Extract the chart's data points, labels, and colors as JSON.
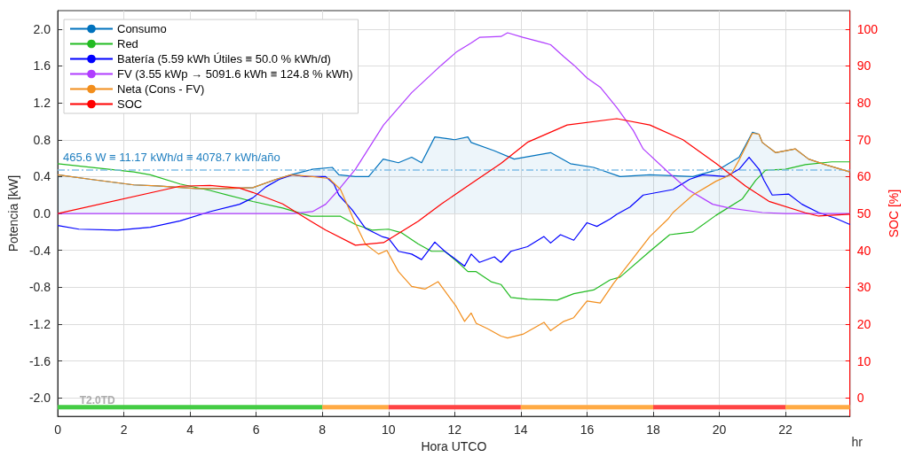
{
  "chart_data": {
    "type": "line",
    "xlabel": "Hora UTCO",
    "ylabel": "Potencia [kW]",
    "y2label": "SOC [%]",
    "xlim": [
      0,
      23.95
    ],
    "xticks": [
      0,
      2,
      4,
      6,
      8,
      10,
      12,
      14,
      16,
      18,
      20,
      22
    ],
    "ylim": [
      -2.2,
      2.2
    ],
    "yticks": [
      {
        "value": -2,
        "label": "-2.0"
      },
      {
        "value": -1.6,
        "label": "-1.6"
      },
      {
        "value": -1.2,
        "label": "-1.2"
      },
      {
        "value": -0.8,
        "label": "-0.8"
      },
      {
        "value": -0.4,
        "label": "-0.4"
      },
      {
        "value": 0,
        "label": "0.0"
      },
      {
        "value": 0.4,
        "label": "0.4"
      },
      {
        "value": 0.8,
        "label": "0.8"
      },
      {
        "value": 1.2,
        "label": "1.2"
      },
      {
        "value": 1.6,
        "label": "1.6"
      },
      {
        "value": 2,
        "label": "2.0"
      }
    ],
    "y2lim": [
      -5,
      105
    ],
    "y2ticks": [
      0,
      10,
      20,
      30,
      40,
      50,
      60,
      70,
      80,
      90,
      100
    ],
    "grid": true,
    "legend": "top left",
    "ref_lines": [
      {
        "axis": "y",
        "value": 0.4656,
        "label": "465.6 W ≡ 11.17 kWh/d ≡ 4078.7 kWh/año",
        "color": "#7fbde6",
        "line_style": "dashed"
      }
    ],
    "annotations": [
      {
        "text": "T2.0TD",
        "x": 1.2,
        "y": -2.03
      },
      "hr"
    ],
    "series": [
      {
        "name": "Consumo",
        "type": "area",
        "color": "#0072bd",
        "x": [
          0,
          1,
          2.3,
          3,
          4.2,
          5,
          5.9,
          6.6,
          7.05,
          7.7,
          8.3,
          8.5,
          9.0,
          9.4,
          9.84,
          10.3,
          10.7,
          11.0,
          11.4,
          12.0,
          12.4,
          12.5,
          13.2,
          13.8,
          14.9,
          15.5,
          16.2,
          17.0,
          17.9,
          19.2,
          20.0,
          20.6,
          21.0,
          21.2,
          21.3,
          21.7,
          22.3,
          22.7,
          23.2,
          23.95
        ],
        "values": [
          0.42,
          0.37,
          0.31,
          0.3,
          0.27,
          0.27,
          0.28,
          0.37,
          0.42,
          0.48,
          0.5,
          0.42,
          0.4,
          0.4,
          0.59,
          0.55,
          0.61,
          0.55,
          0.83,
          0.8,
          0.83,
          0.77,
          0.68,
          0.59,
          0.66,
          0.54,
          0.5,
          0.4,
          0.42,
          0.4,
          0.48,
          0.61,
          0.88,
          0.86,
          0.77,
          0.66,
          0.7,
          0.59,
          0.53,
          0.45
        ]
      },
      {
        "name": "Red",
        "color": "#22bb22",
        "x": [
          0,
          2.3,
          2.8,
          3.7,
          4.6,
          5.9,
          6.8,
          7.65,
          8.55,
          9.0,
          9.5,
          10.0,
          10.4,
          10.9,
          11.3,
          11.7,
          12.1,
          12.4,
          12.65,
          13.1,
          13.4,
          13.7,
          14.2,
          15.1,
          15.6,
          16.2,
          16.7,
          17.0,
          17.9,
          18.5,
          19.2,
          19.9,
          20.7,
          21.1,
          21.4,
          22.0,
          22.6,
          23.4,
          23.95
        ],
        "values": [
          0.54,
          0.45,
          0.42,
          0.32,
          0.25,
          0.13,
          0.06,
          -0.03,
          -0.03,
          -0.12,
          -0.18,
          -0.17,
          -0.21,
          -0.33,
          -0.41,
          -0.41,
          -0.53,
          -0.63,
          -0.63,
          -0.74,
          -0.77,
          -0.91,
          -0.93,
          -0.94,
          -0.87,
          -0.83,
          -0.72,
          -0.69,
          -0.41,
          -0.23,
          -0.2,
          -0.02,
          0.16,
          0.36,
          0.47,
          0.48,
          0.53,
          0.56,
          0.56
        ]
      },
      {
        "name": "Batería (5.59 kWh Útiles ≡ 50.0 % kWh/d)",
        "color": "#0000ff",
        "x": [
          0,
          0.64,
          1.8,
          2.8,
          3.7,
          4.6,
          5.5,
          5.9,
          6.3,
          6.7,
          7.1,
          7.5,
          8.1,
          8.35,
          8.5,
          8.9,
          9.3,
          9.8,
          10.0,
          10.3,
          10.7,
          11.0,
          11.4,
          11.7,
          12.0,
          12.3,
          12.5,
          12.75,
          13.2,
          13.4,
          13.7,
          14.2,
          14.7,
          14.9,
          15.2,
          15.6,
          16.0,
          16.3,
          16.7,
          16.9,
          17.3,
          17.7,
          18.6,
          19.1,
          19.5,
          20.2,
          20.6,
          20.9,
          21.2,
          21.35,
          21.6,
          22.1,
          22.5,
          23.0,
          23.5,
          23.95
        ],
        "values": [
          -0.13,
          -0.17,
          -0.18,
          -0.15,
          -0.08,
          0.02,
          0.1,
          0.17,
          0.29,
          0.37,
          0.42,
          0.4,
          0.4,
          0.32,
          0.2,
          0.04,
          -0.16,
          -0.25,
          -0.27,
          -0.41,
          -0.44,
          -0.5,
          -0.31,
          -0.41,
          -0.49,
          -0.57,
          -0.44,
          -0.53,
          -0.47,
          -0.53,
          -0.41,
          -0.36,
          -0.25,
          -0.32,
          -0.23,
          -0.29,
          -0.1,
          -0.14,
          -0.06,
          -0.01,
          0.07,
          0.2,
          0.26,
          0.37,
          0.42,
          0.4,
          0.48,
          0.61,
          0.48,
          0.36,
          0.2,
          0.21,
          0.1,
          0.01,
          -0.05,
          -0.12
        ]
      },
      {
        "name": "FV (3.55 kWp → 5091.6 kWh ≡ 124.8 % kWh)",
        "color": "#b03cff",
        "x": [
          0,
          7.1,
          7.7,
          8.1,
          8.5,
          9.0,
          9.85,
          10.7,
          11.6,
          12.05,
          12.5,
          12.75,
          13.4,
          13.6,
          14.06,
          14.7,
          14.9,
          15.3,
          15.6,
          16.0,
          16.4,
          16.9,
          17.4,
          17.7,
          18.45,
          19.05,
          19.8,
          20.3,
          21.3,
          22,
          23.95
        ],
        "values": [
          0,
          0,
          0.02,
          0.1,
          0.26,
          0.48,
          0.96,
          1.31,
          1.61,
          1.75,
          1.85,
          1.91,
          1.92,
          1.96,
          1.91,
          1.85,
          1.83,
          1.7,
          1.61,
          1.47,
          1.37,
          1.15,
          0.9,
          0.7,
          0.45,
          0.26,
          0.1,
          0.06,
          0.01,
          0,
          0
        ]
      },
      {
        "name": "Neta (Cons - FV)",
        "color": "#f28e1c",
        "x": [
          0,
          1,
          2.3,
          3,
          4.2,
          5,
          5.9,
          6.6,
          7.05,
          7.7,
          8.2,
          8.55,
          9.0,
          9.3,
          9.7,
          9.95,
          10.3,
          10.7,
          11.1,
          11.5,
          12.05,
          12.3,
          12.5,
          12.65,
          13.0,
          13.4,
          13.6,
          14.06,
          14.7,
          14.9,
          15.3,
          15.6,
          16.0,
          16.4,
          16.8,
          17.3,
          17.9,
          18.45,
          18.6,
          19.2,
          19.9,
          20.35,
          20.6,
          21.0,
          21.2,
          21.3,
          21.7,
          22.3,
          22.7,
          23.2,
          23.95
        ],
        "values": [
          0.42,
          0.37,
          0.31,
          0.3,
          0.27,
          0.27,
          0.28,
          0.37,
          0.42,
          0.4,
          0.38,
          0.26,
          -0.11,
          -0.33,
          -0.44,
          -0.4,
          -0.63,
          -0.79,
          -0.82,
          -0.74,
          -1.01,
          -1.17,
          -1.08,
          -1.19,
          -1.25,
          -1.33,
          -1.35,
          -1.31,
          -1.18,
          -1.27,
          -1.17,
          -1.13,
          -0.95,
          -0.97,
          -0.76,
          -0.53,
          -0.25,
          -0.06,
          0.01,
          0.2,
          0.35,
          0.42,
          0.58,
          0.87,
          0.86,
          0.77,
          0.66,
          0.7,
          0.59,
          0.53,
          0.45
        ]
      },
      {
        "name": "SOC",
        "color": "#ff0000",
        "axis": "y2",
        "x": [
          0,
          3.7,
          4.6,
          5.5,
          5.9,
          6.8,
          7.65,
          8.1,
          9.0,
          9.85,
          10.9,
          11.6,
          12.5,
          13.4,
          14.2,
          15.4,
          16.9,
          17.9,
          18.9,
          19.9,
          20.8,
          21.5,
          22.6,
          23.0,
          23.95
        ],
        "values": [
          50,
          57.4,
          57.6,
          56.9,
          55.7,
          52.6,
          47.9,
          45.5,
          41.4,
          42.1,
          47.9,
          52.6,
          58.1,
          63.6,
          69.3,
          74,
          75.7,
          74,
          70,
          63.6,
          57.4,
          53.3,
          50.2,
          49.3,
          49.8
        ]
      },
      {
        "color": "#44cc44",
        "x": [
          0,
          8
        ],
        "values": [
          -2.1,
          -2.1
        ]
      },
      {
        "color": "#ffaa44",
        "x": [
          8,
          10
        ],
        "values": [
          -2.1,
          -2.1
        ]
      },
      {
        "color": "#ff4444",
        "x": [
          10,
          14
        ],
        "values": [
          -2.1,
          -2.1
        ]
      },
      {
        "color": "#ffaa44",
        "x": [
          14,
          18
        ],
        "values": [
          -2.1,
          -2.1
        ]
      },
      {
        "color": "#ff4444",
        "x": [
          18,
          22
        ],
        "values": [
          -2.1,
          -2.1
        ]
      },
      {
        "color": "#ffaa44",
        "x": [
          22,
          23.95
        ],
        "values": [
          -2.1,
          -2.1
        ]
      }
    ]
  }
}
